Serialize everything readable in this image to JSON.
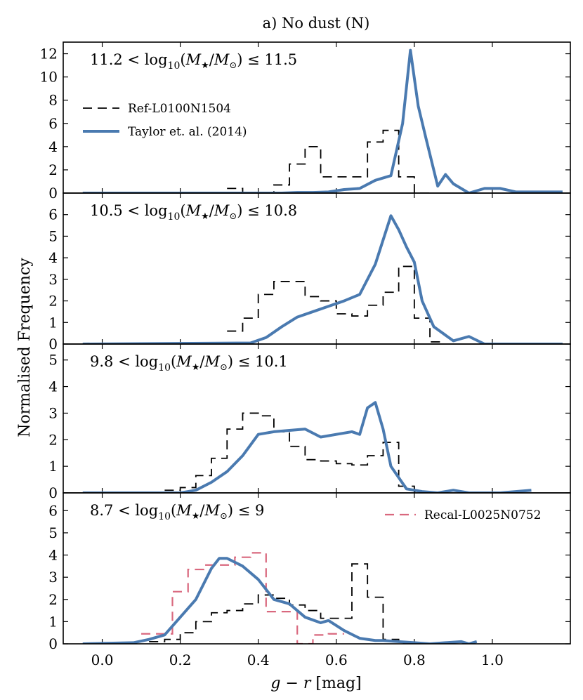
{
  "chart_data": {
    "type": "line",
    "title": "a) No dust (N)",
    "xlabel": "g − r [mag]",
    "ylabel": "Normalised Frequency",
    "xlim": [
      -0.1,
      1.2
    ],
    "xticks": [
      0.0,
      0.2,
      0.4,
      0.6,
      0.8,
      1.0
    ],
    "xtick_labels": [
      "0.0",
      "0.2",
      "0.4",
      "0.6",
      "0.8",
      "1.0"
    ],
    "colors": {
      "ref": "#000000",
      "taylor": "#4a7ab0",
      "recal": "#d9687e"
    },
    "legend": [
      {
        "series": "ref",
        "label": "Ref-L0100N1504",
        "style": "black dashed step"
      },
      {
        "series": "taylor",
        "label": "Taylor et. al. (2014)",
        "style": "blue solid line"
      }
    ],
    "legend2": {
      "series": "recal",
      "label": "Recal-L0025N0752",
      "style": "pink dashed step"
    },
    "panels": [
      {
        "label": "11.2 < log10(M★/M⊙) ≤ 11.5",
        "ylim": [
          0,
          13
        ],
        "yticks": [
          0,
          2,
          4,
          6,
          8,
          10,
          12
        ],
        "ref_step": {
          "edges": [
            0.32,
            0.36,
            0.4,
            0.44,
            0.48,
            0.52,
            0.56,
            0.6,
            0.64,
            0.68,
            0.72,
            0.76,
            0.8,
            0.84
          ],
          "values": [
            0.4,
            0.0,
            0.0,
            0.7,
            2.5,
            4.0,
            1.4,
            1.4,
            1.4,
            4.4,
            5.4,
            1.4,
            0.0
          ]
        },
        "taylor": {
          "x": [
            -0.05,
            0.46,
            0.5,
            0.54,
            0.58,
            0.62,
            0.66,
            0.7,
            0.74,
            0.77,
            0.79,
            0.81,
            0.83,
            0.86,
            0.88,
            0.9,
            0.94,
            0.98,
            1.02,
            1.06,
            1.1,
            1.14,
            1.18
          ],
          "y": [
            0.0,
            0.0,
            0.05,
            0.05,
            0.1,
            0.3,
            0.4,
            1.1,
            1.5,
            6.0,
            12.3,
            7.5,
            4.7,
            0.6,
            1.6,
            0.8,
            0.0,
            0.4,
            0.4,
            0.1,
            0.1,
            0.1,
            0.1
          ]
        }
      },
      {
        "label": "10.5 < log10(M★/M⊙) ≤ 10.8",
        "ylim": [
          0,
          7
        ],
        "yticks": [
          0,
          1,
          2,
          3,
          4,
          5,
          6
        ],
        "ref_step": {
          "edges": [
            0.32,
            0.36,
            0.4,
            0.44,
            0.48,
            0.52,
            0.56,
            0.6,
            0.64,
            0.68,
            0.72,
            0.76,
            0.8,
            0.84,
            0.88
          ],
          "values": [
            0.6,
            1.2,
            2.3,
            2.9,
            2.9,
            2.2,
            2.0,
            1.4,
            1.3,
            1.8,
            2.4,
            3.6,
            1.2,
            0.1
          ]
        },
        "taylor": {
          "x": [
            -0.05,
            0.38,
            0.42,
            0.46,
            0.5,
            0.54,
            0.58,
            0.62,
            0.66,
            0.7,
            0.74,
            0.76,
            0.78,
            0.8,
            0.82,
            0.85,
            0.9,
            0.94,
            0.98,
            1.02,
            1.1,
            1.18
          ],
          "y": [
            0.0,
            0.05,
            0.3,
            0.8,
            1.25,
            1.5,
            1.75,
            2.0,
            2.3,
            3.7,
            5.95,
            5.3,
            4.5,
            3.8,
            2.0,
            0.8,
            0.15,
            0.35,
            0.0,
            0.0,
            0.0,
            0.0
          ]
        }
      },
      {
        "label": "9.8 < log10(M★/M⊙) ≤ 10.1",
        "ylim": [
          0,
          5.6
        ],
        "yticks": [
          0,
          1,
          2,
          3,
          4,
          5
        ],
        "ref_step": {
          "edges": [
            0.16,
            0.2,
            0.24,
            0.28,
            0.32,
            0.36,
            0.4,
            0.44,
            0.48,
            0.52,
            0.56,
            0.6,
            0.64,
            0.68,
            0.72,
            0.76,
            0.8,
            0.84
          ],
          "values": [
            0.1,
            0.2,
            0.65,
            1.3,
            2.4,
            3.0,
            2.9,
            2.3,
            1.75,
            1.25,
            1.2,
            1.1,
            1.05,
            1.4,
            1.9,
            0.25,
            0.05
          ]
        },
        "taylor": {
          "x": [
            -0.05,
            0.2,
            0.24,
            0.28,
            0.32,
            0.36,
            0.4,
            0.44,
            0.48,
            0.52,
            0.56,
            0.6,
            0.64,
            0.66,
            0.68,
            0.7,
            0.72,
            0.74,
            0.78,
            0.82,
            0.86,
            0.9,
            0.94,
            1.02,
            1.1
          ],
          "y": [
            0.0,
            0.0,
            0.1,
            0.4,
            0.8,
            1.4,
            2.2,
            2.3,
            2.35,
            2.4,
            2.1,
            2.2,
            2.3,
            2.2,
            3.2,
            3.4,
            2.4,
            1.0,
            0.15,
            0.05,
            0.0,
            0.1,
            0.0,
            0.0,
            0.1
          ]
        }
      },
      {
        "label": "8.7 < log10(M★/M⊙) ≤ 9",
        "ylim": [
          0,
          6.8
        ],
        "yticks": [
          0,
          1,
          2,
          3,
          4,
          5,
          6
        ],
        "ref_step": {
          "edges": [
            0.12,
            0.16,
            0.2,
            0.24,
            0.28,
            0.32,
            0.36,
            0.4,
            0.44,
            0.48,
            0.52,
            0.56,
            0.6,
            0.64,
            0.68,
            0.72,
            0.76,
            0.8,
            0.84
          ],
          "values": [
            0.1,
            0.2,
            0.5,
            1.0,
            1.4,
            1.5,
            1.8,
            2.2,
            2.05,
            1.75,
            1.5,
            1.15,
            1.15,
            3.6,
            2.1,
            0.2,
            0.05,
            0.0
          ]
        },
        "recal_step": {
          "edges": [
            0.1,
            0.14,
            0.18,
            0.22,
            0.26,
            0.3,
            0.34,
            0.38,
            0.42,
            0.46,
            0.5,
            0.54,
            0.58,
            0.62
          ],
          "values": [
            0.45,
            0.45,
            2.35,
            3.35,
            3.55,
            3.55,
            3.9,
            4.1,
            1.45,
            1.45,
            0.0,
            0.4,
            0.45
          ]
        },
        "taylor": {
          "x": [
            -0.05,
            0.08,
            0.12,
            0.16,
            0.2,
            0.24,
            0.28,
            0.3,
            0.32,
            0.36,
            0.4,
            0.44,
            0.48,
            0.52,
            0.56,
            0.58,
            0.62,
            0.66,
            0.7,
            0.72,
            0.76,
            0.8,
            0.84,
            0.88,
            0.92,
            0.94,
            0.96
          ],
          "y": [
            0.0,
            0.05,
            0.2,
            0.4,
            1.2,
            2.0,
            3.4,
            3.85,
            3.85,
            3.5,
            2.9,
            2.0,
            1.8,
            1.2,
            0.95,
            1.05,
            0.6,
            0.25,
            0.15,
            0.15,
            0.1,
            0.05,
            0.0,
            0.05,
            0.1,
            0.0,
            0.1
          ]
        }
      }
    ]
  }
}
